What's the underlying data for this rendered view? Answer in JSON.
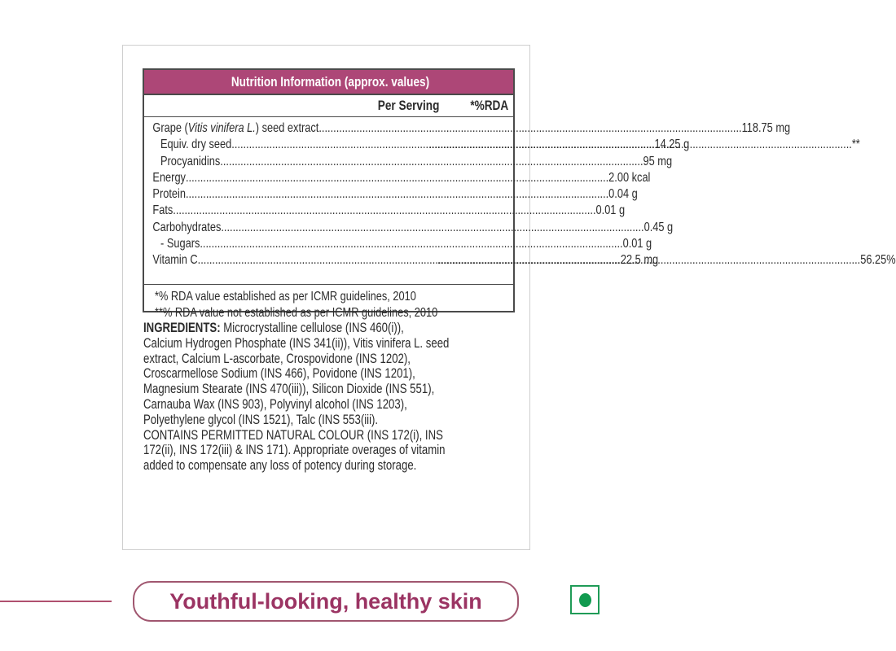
{
  "table": {
    "title": "Nutrition Information (approx. values)",
    "col_per_serving": "Per Serving",
    "col_rda": "*%RDA",
    "rows": [
      {
        "name_pre": "Grape (",
        "name_italic": "Vitis vinifera L.",
        "name_post": ") seed extract",
        "value": "118.75 mg",
        "rda": ""
      },
      {
        "name": "Equiv. dry seed",
        "value": "14.25 g",
        "rda": "**"
      },
      {
        "name": "Procyanidins",
        "value": "95 mg",
        "rda": ""
      },
      {
        "name": "Energy",
        "value": "2.00 kcal",
        "rda": ""
      },
      {
        "name": "Protein",
        "value": "0.04 g",
        "rda": ""
      },
      {
        "name": "Fats",
        "value": "0.01 g",
        "rda": ""
      },
      {
        "name": "Carbohydrates",
        "value": "0.45 g",
        "rda": ""
      },
      {
        "name": "- Sugars",
        "value": "0.01 g",
        "rda": ""
      },
      {
        "name": "Vitamin C",
        "value": "22.5 mg",
        "rda": "56.25%"
      }
    ],
    "footnotes": [
      "*% RDA value established as per ICMR guidelines, 2010",
      "**% RDA value not established as per ICMR guidelines, 2010"
    ]
  },
  "ingredients": {
    "label": "INGREDIENTS:",
    "lines": [
      " Microcrystalline cellulose (INS 460(i)),",
      "Calcium Hydrogen Phosphate (INS 341(ii)), Vitis vinifera L. seed",
      "extract, Calcium L-ascorbate, Crospovidone (INS 1202),",
      "Croscarmellose Sodium (INS 466), Povidone (INS 1201),",
      "Magnesium Stearate (INS 470(iii)), Silicon Dioxide (INS 551),",
      "Carnauba Wax (INS 903), Polyvinyl alcohol (INS 1203),",
      "Polyethylene glycol (INS 1521), Talc (INS 553(iii).",
      "CONTAINS PERMITTED NATURAL COLOUR (INS 172(i), INS",
      "172(ii), INS 172(iii) & INS 171). Appropriate overages of vitamin",
      "added to compensate any loss of potency during storage."
    ]
  },
  "tagline": "Youthful-looking, healthy skin",
  "icons": {
    "veg": "veg-mark-icon"
  },
  "colors": {
    "accent": "#ad4777",
    "veg_green": "#119a4f"
  }
}
